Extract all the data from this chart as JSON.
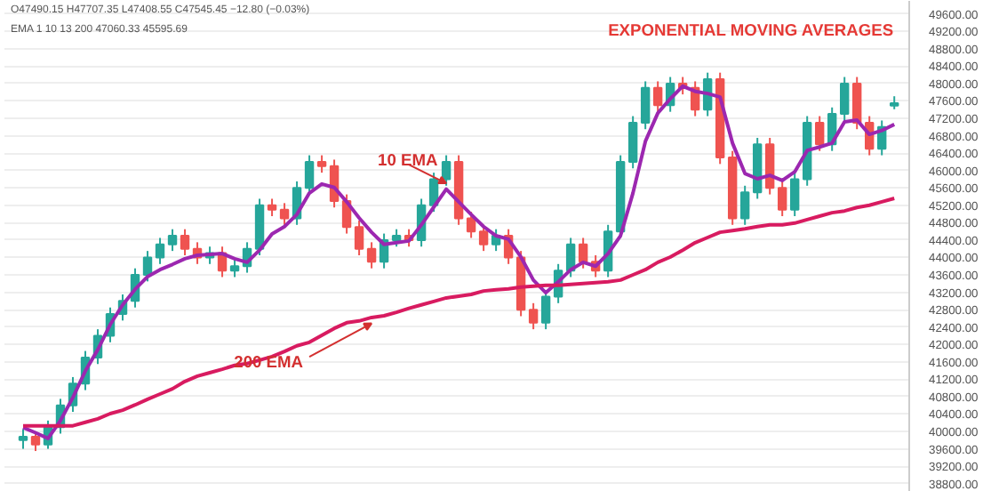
{
  "chart_data": {
    "type": "candlestick",
    "title": "EXPONENTIAL MOVING AVERAGES",
    "annotations": [
      "O47490.15 H47707.35 L47408.55 C47545.45 −12.80 (−0.03%)",
      "EMA 1 10 13 200 47060.33 45595.69"
    ],
    "categories": [
      null,
      null,
      null,
      null,
      null,
      null,
      null,
      null,
      null,
      null,
      null,
      null,
      null,
      null,
      null,
      null,
      null,
      null,
      null,
      null,
      null,
      null,
      null,
      null,
      null,
      null,
      null,
      null,
      null,
      null,
      null,
      null,
      null,
      null,
      null,
      null,
      null,
      null,
      null,
      null,
      null,
      null,
      null,
      null,
      null,
      null,
      null,
      null,
      null,
      null,
      null,
      null,
      null,
      null,
      null,
      null,
      null,
      null,
      null,
      null,
      null,
      null,
      null,
      null,
      null,
      null,
      null,
      null,
      null,
      null,
      null
    ],
    "ohlc": [
      [
        39800,
        40050,
        39600,
        39880
      ],
      [
        39880,
        40000,
        39550,
        39700
      ],
      [
        39700,
        40250,
        39600,
        40100
      ],
      [
        40100,
        40750,
        39950,
        40600
      ],
      [
        40600,
        41250,
        40450,
        41100
      ],
      [
        41100,
        41850,
        40950,
        41700
      ],
      [
        41700,
        42350,
        41550,
        42200
      ],
      [
        42200,
        42850,
        42050,
        42700
      ],
      [
        42700,
        43150,
        42550,
        43000
      ],
      [
        43000,
        43750,
        42850,
        43600
      ],
      [
        43600,
        44150,
        43450,
        44000
      ],
      [
        44000,
        44450,
        43850,
        44300
      ],
      [
        44300,
        44650,
        44150,
        44500
      ],
      [
        44500,
        44650,
        44050,
        44200
      ],
      [
        44200,
        44350,
        43850,
        44000
      ],
      [
        44000,
        44250,
        43850,
        44100
      ],
      [
        44100,
        44250,
        43550,
        43700
      ],
      [
        43700,
        43950,
        43550,
        43800
      ],
      [
        43800,
        44350,
        43650,
        44200
      ],
      [
        44200,
        45350,
        44050,
        45200
      ],
      [
        45200,
        45350,
        44950,
        45100
      ],
      [
        45100,
        45250,
        44750,
        44900
      ],
      [
        44900,
        45750,
        44750,
        45600
      ],
      [
        45600,
        46350,
        45450,
        46200
      ],
      [
        46200,
        46350,
        45950,
        46100
      ],
      [
        46100,
        46250,
        45150,
        45300
      ],
      [
        45300,
        45450,
        44550,
        44700
      ],
      [
        44700,
        44850,
        44050,
        44200
      ],
      [
        44200,
        44350,
        43750,
        43900
      ],
      [
        43900,
        44550,
        43750,
        44400
      ],
      [
        44400,
        44650,
        44250,
        44500
      ],
      [
        44500,
        44650,
        44250,
        44400
      ],
      [
        44400,
        45350,
        44250,
        45200
      ],
      [
        45200,
        45950,
        45050,
        45800
      ],
      [
        45800,
        46350,
        45650,
        46200
      ],
      [
        46200,
        46350,
        44750,
        44900
      ],
      [
        44900,
        45050,
        44450,
        44600
      ],
      [
        44600,
        44750,
        44150,
        44300
      ],
      [
        44300,
        44650,
        44150,
        44500
      ],
      [
        44500,
        44650,
        43850,
        44000
      ],
      [
        44000,
        44150,
        42650,
        42800
      ],
      [
        42800,
        42950,
        42350,
        42500
      ],
      [
        42500,
        43250,
        42350,
        43100
      ],
      [
        43100,
        43850,
        42950,
        43700
      ],
      [
        43700,
        44450,
        43550,
        44300
      ],
      [
        44300,
        44450,
        43750,
        43900
      ],
      [
        43900,
        44050,
        43550,
        43700
      ],
      [
        43700,
        44750,
        43550,
        44600
      ],
      [
        44600,
        46350,
        44450,
        46200
      ],
      [
        46200,
        47250,
        46050,
        47100
      ],
      [
        47100,
        48050,
        46950,
        47900
      ],
      [
        47900,
        48050,
        47350,
        47500
      ],
      [
        47500,
        48150,
        47350,
        48000
      ],
      [
        48000,
        48150,
        47750,
        47900
      ],
      [
        47900,
        48050,
        47250,
        47400
      ],
      [
        47400,
        48250,
        47250,
        48100
      ],
      [
        48100,
        48250,
        46150,
        46300
      ],
      [
        46300,
        46450,
        44750,
        44900
      ],
      [
        44900,
        45650,
        44750,
        45500
      ],
      [
        45500,
        46750,
        45350,
        46600
      ],
      [
        46600,
        46750,
        45450,
        45600
      ],
      [
        45600,
        45750,
        44950,
        45100
      ],
      [
        45100,
        45950,
        44950,
        45800
      ],
      [
        45800,
        47250,
        45650,
        47100
      ],
      [
        47100,
        47250,
        46450,
        46600
      ],
      [
        46600,
        47450,
        46450,
        47300
      ],
      [
        47300,
        48150,
        47150,
        48000
      ],
      [
        48000,
        48150,
        46950,
        47100
      ],
      [
        47100,
        47250,
        46350,
        46500
      ],
      [
        46500,
        47150,
        46350,
        47000
      ],
      [
        47490.15,
        47707.35,
        47408.55,
        47545.45
      ]
    ],
    "series": [
      {
        "name": "10 EMA",
        "type": "line",
        "color": "#9c27b0",
        "values": [
          40090,
          39970,
          39840,
          40250,
          40780,
          41390,
          41880,
          42460,
          42910,
          43270,
          43560,
          43720,
          43840,
          43970,
          44050,
          44070,
          44090,
          43970,
          43890,
          44170,
          44540,
          44710,
          44990,
          45480,
          45690,
          45610,
          45280,
          44910,
          44580,
          44300,
          44340,
          44380,
          44750,
          45160,
          45570,
          45280,
          44990,
          44710,
          44500,
          44420,
          44010,
          43480,
          43190,
          43440,
          43720,
          43890,
          43800,
          44090,
          44500,
          45480,
          46670,
          47320,
          47650,
          47940,
          47820,
          47770,
          47690,
          46630,
          45930,
          45810,
          45890,
          45770,
          45970,
          46460,
          46540,
          46630,
          47120,
          47160,
          46830,
          46920,
          47060
        ]
      },
      {
        "name": "200 EMA",
        "type": "line",
        "color": "#d81b60",
        "values": [
          40130,
          40130,
          40130,
          40130,
          40130,
          40210,
          40290,
          40410,
          40490,
          40610,
          40740,
          40860,
          40980,
          41150,
          41270,
          41350,
          41430,
          41520,
          41560,
          41640,
          41720,
          41840,
          41970,
          42050,
          42210,
          42370,
          42500,
          42540,
          42620,
          42660,
          42740,
          42830,
          42910,
          42990,
          43070,
          43110,
          43150,
          43230,
          43260,
          43280,
          43320,
          43340,
          43360,
          43360,
          43380,
          43400,
          43420,
          43440,
          43480,
          43600,
          43720,
          43890,
          44010,
          44170,
          44340,
          44460,
          44580,
          44620,
          44660,
          44710,
          44750,
          44750,
          44790,
          44870,
          44950,
          45030,
          45070,
          45150,
          45200,
          45280,
          45360
        ]
      }
    ],
    "ylim": [
      38610,
      49900
    ],
    "yticks": [
      {
        "value": 38800,
        "label": "38800.00"
      },
      {
        "value": 39200,
        "label": "39200.00"
      },
      {
        "value": 39600,
        "label": "39600.00"
      },
      {
        "value": 40000,
        "label": "40000.00"
      },
      {
        "value": 40400,
        "label": "40400.00"
      },
      {
        "value": 40800,
        "label": "40800.00"
      },
      {
        "value": 41200,
        "label": "41200.00"
      },
      {
        "value": 41600,
        "label": "41600.00"
      },
      {
        "value": 42000,
        "label": "42000.00"
      },
      {
        "value": 42400,
        "label": "42400.00"
      },
      {
        "value": 42800,
        "label": "42800.00"
      },
      {
        "value": 43200,
        "label": "43200.00"
      },
      {
        "value": 43600,
        "label": "43600.00"
      },
      {
        "value": 44000,
        "label": "44000.00"
      },
      {
        "value": 44400,
        "label": "44400.00"
      },
      {
        "value": 44800,
        "label": "44800.00"
      },
      {
        "value": 45200,
        "label": "45200.00"
      },
      {
        "value": 45600,
        "label": "45600.00"
      },
      {
        "value": 46000,
        "label": "46000.00"
      },
      {
        "value": 46400,
        "label": "46400.00"
      },
      {
        "value": 46800,
        "label": "46800.00"
      },
      {
        "value": 47200,
        "label": "47200.00"
      },
      {
        "value": 47600,
        "label": "47600.00"
      },
      {
        "value": 48000,
        "label": "48000.00"
      },
      {
        "value": 48400,
        "label": "48400.00"
      },
      {
        "value": 48800,
        "label": "48800.00"
      },
      {
        "value": 49200,
        "label": "49200.00"
      },
      {
        "value": 49600,
        "label": "49600.00"
      }
    ],
    "grid": "y",
    "tick_labels": "y"
  }
}
